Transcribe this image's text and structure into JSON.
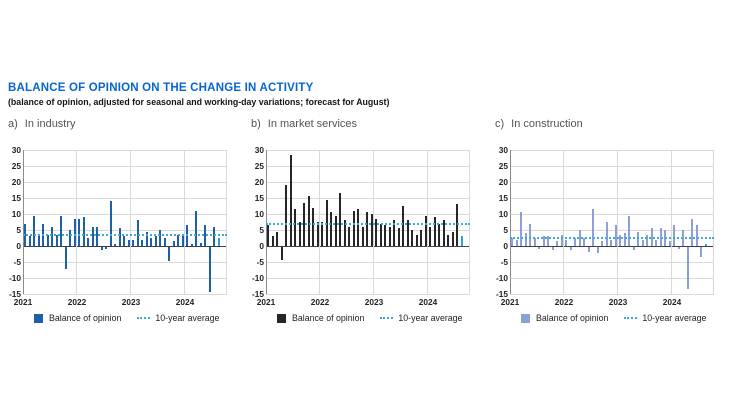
{
  "page": {
    "title": "BALANCE OF OPINION ON THE CHANGE IN ACTIVITY",
    "subtitle": "(balance of opinion, adjusted for seasonal and working-day variations; forecast for August)"
  },
  "legend": {
    "balance_label": "Balance of opinion",
    "average_label": "10-year average"
  },
  "colors": {
    "title": "#0666cf",
    "grid": "#d9d9d9",
    "axis_line": "#8c8c8c",
    "zero_line": "#3f3f3f",
    "average_line": "#3fa8dc",
    "forecast_bar": "#2aa3dc",
    "industry_bar": "#1d5fa9",
    "services_bar": "#262626",
    "construction_bar": "#8c9fd6"
  },
  "axis": {
    "y_ticks": [
      "30",
      "25",
      "20",
      "15",
      "10",
      "5",
      "0",
      "-5",
      "-10",
      "-15"
    ],
    "x_ticks": [
      "2021",
      "2022",
      "2023",
      "2024"
    ],
    "ylim": [
      -15,
      30
    ],
    "grid": true
  },
  "chart_data": [
    {
      "type": "bar",
      "panel_label": "a)",
      "title": "In industry",
      "bar_color": "#1d5fa9",
      "average": 3.5,
      "last_is_forecast": true,
      "forecast_month": "Aug 2024",
      "categories": [
        "Jan 2021",
        "Feb 2021",
        "Mar 2021",
        "Apr 2021",
        "May 2021",
        "Jun 2021",
        "Jul 2021",
        "Aug 2021",
        "Sep 2021",
        "Oct 2021",
        "Nov 2021",
        "Dec 2021",
        "Jan 2022",
        "Feb 2022",
        "Mar 2022",
        "Apr 2022",
        "May 2022",
        "Jun 2022",
        "Jul 2022",
        "Aug 2022",
        "Sep 2022",
        "Oct 2022",
        "Nov 2022",
        "Dec 2022",
        "Jan 2023",
        "Feb 2023",
        "Mar 2023",
        "Apr 2023",
        "May 2023",
        "Jun 2023",
        "Jul 2023",
        "Aug 2023",
        "Sep 2023",
        "Oct 2023",
        "Nov 2023",
        "Dec 2023",
        "Jan 2024",
        "Feb 2024",
        "Mar 2024",
        "Apr 2024",
        "May 2024",
        "Jun 2024",
        "Jul 2024",
        "Aug 2024"
      ],
      "values": [
        7,
        3,
        9.5,
        3.5,
        7,
        3.5,
        6,
        3.5,
        9.5,
        -7,
        5,
        8.5,
        8.5,
        9,
        2.5,
        6,
        6,
        -1,
        -0.5,
        14,
        0.5,
        5.5,
        3,
        2,
        2,
        8,
        2,
        4.5,
        2.5,
        3,
        5,
        2.5,
        -4.5,
        1.5,
        3.5,
        3.5,
        6.5,
        0.5,
        11,
        1,
        6.5,
        -14,
        6,
        2.5
      ]
    },
    {
      "type": "bar",
      "panel_label": "b)",
      "title": "In market services",
      "bar_color": "#262626",
      "average": 7,
      "last_is_forecast": true,
      "forecast_month": "Aug 2024",
      "categories": [
        "Jan 2021",
        "Feb 2021",
        "Mar 2021",
        "Apr 2021",
        "May 2021",
        "Jun 2021",
        "Jul 2021",
        "Aug 2021",
        "Sep 2021",
        "Oct 2021",
        "Nov 2021",
        "Dec 2021",
        "Jan 2022",
        "Feb 2022",
        "Mar 2022",
        "Apr 2022",
        "May 2022",
        "Jun 2022",
        "Jul 2022",
        "Aug 2022",
        "Sep 2022",
        "Oct 2022",
        "Nov 2022",
        "Dec 2022",
        "Jan 2023",
        "Feb 2023",
        "Mar 2023",
        "Apr 2023",
        "May 2023",
        "Jun 2023",
        "Jul 2023",
        "Aug 2023",
        "Sep 2023",
        "Oct 2023",
        "Nov 2023",
        "Dec 2023",
        "Jan 2024",
        "Feb 2024",
        "Mar 2024",
        "Apr 2024",
        "May 2024",
        "Jun 2024",
        "Jul 2024",
        "Aug 2024"
      ],
      "values": [
        6.5,
        3,
        4.5,
        -4,
        19,
        28.5,
        11.5,
        7.5,
        13.5,
        15.5,
        12,
        7.5,
        7.5,
        14.5,
        10.5,
        9.5,
        16.5,
        8,
        6,
        11,
        11.5,
        6,
        10.5,
        10,
        8.5,
        7,
        6.5,
        6,
        8,
        5.5,
        12.5,
        8,
        5,
        3.5,
        5,
        9.5,
        6,
        9,
        7,
        8,
        3.5,
        4.5,
        13,
        3
      ]
    },
    {
      "type": "bar",
      "panel_label": "c)",
      "title": "In construction",
      "bar_color": "#8c9fd6",
      "average": 2.5,
      "last_is_forecast": true,
      "forecast_month": "Aug 2024",
      "categories": [
        "Jan 2021",
        "Feb 2021",
        "Mar 2021",
        "Apr 2021",
        "May 2021",
        "Jun 2021",
        "Jul 2021",
        "Aug 2021",
        "Sep 2021",
        "Oct 2021",
        "Nov 2021",
        "Dec 2021",
        "Jan 2022",
        "Feb 2022",
        "Mar 2022",
        "Apr 2022",
        "May 2022",
        "Jun 2022",
        "Jul 2022",
        "Aug 2022",
        "Sep 2022",
        "Oct 2022",
        "Nov 2022",
        "Dec 2022",
        "Jan 2023",
        "Feb 2023",
        "Mar 2023",
        "Apr 2023",
        "May 2023",
        "Jun 2023",
        "Jul 2023",
        "Aug 2023",
        "Sep 2023",
        "Oct 2023",
        "Nov 2023",
        "Dec 2023",
        "Jan 2024",
        "Feb 2024",
        "Mar 2024",
        "Apr 2024",
        "May 2024",
        "Jun 2024",
        "Jul 2024",
        "Aug 2024"
      ],
      "values": [
        2.5,
        2,
        10.5,
        4,
        7,
        2.5,
        -0.5,
        3,
        3,
        -1,
        1.5,
        3.5,
        2,
        -1,
        2.5,
        5,
        2.5,
        -1.5,
        11.5,
        -2,
        1.5,
        7.5,
        2,
        6.5,
        3.5,
        4,
        9.5,
        -1,
        4.5,
        2,
        3.5,
        5.5,
        2,
        5.5,
        5,
        1.5,
        6.5,
        -0.5,
        5,
        -13,
        8.5,
        6.5,
        -3,
        0.5
      ]
    }
  ]
}
